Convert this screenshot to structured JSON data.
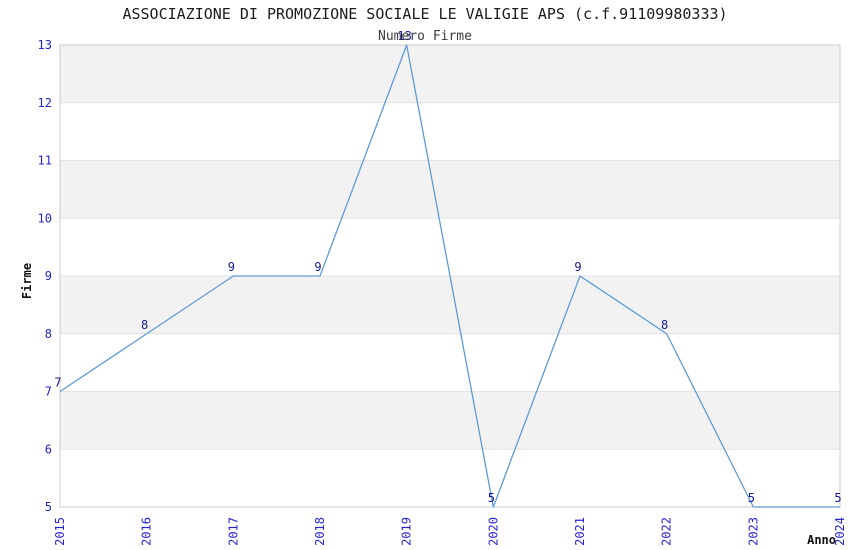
{
  "header": {
    "title": "ASSOCIAZIONE DI PROMOZIONE SOCIALE LE VALIGIE APS (c.f.91109980333)",
    "subtitle": "Numero Firme"
  },
  "chart_data": {
    "type": "line",
    "title": "ASSOCIAZIONE DI PROMOZIONE SOCIALE LE VALIGIE APS (c.f.91109980333)",
    "subtitle": "Numero Firme",
    "xlabel": "Anno",
    "ylabel": "Firme",
    "x": [
      2015,
      2016,
      2017,
      2018,
      2019,
      2020,
      2021,
      2022,
      2023,
      2024
    ],
    "values": [
      7,
      8,
      9,
      9,
      13,
      5,
      9,
      8,
      5,
      5
    ],
    "series": [
      {
        "name": "Numero Firme",
        "values": [
          7,
          8,
          9,
          9,
          13,
          5,
          9,
          8,
          5,
          5
        ]
      }
    ],
    "ylim": [
      5,
      13
    ],
    "yticks": [
      5,
      6,
      7,
      8,
      9,
      10,
      11,
      12,
      13
    ],
    "xticks": [
      2015,
      2016,
      2017,
      2018,
      2019,
      2020,
      2021,
      2022,
      2023,
      2024
    ],
    "data_labels": true,
    "legend": "none",
    "grid": "horizontal",
    "shaded_bands": [
      [
        6,
        7
      ],
      [
        8,
        9
      ],
      [
        10,
        11
      ],
      [
        12,
        13
      ]
    ],
    "colors": {
      "line": "#5f9bd7",
      "band": "#f2f2f2",
      "grid": "#e3e3e3",
      "border": "#cccccc",
      "tick_label": "#2626d1",
      "data_label": "#17178c",
      "title": "#1c1c1c",
      "subtitle": "#3d3d3d",
      "axis_title": "#111111"
    }
  }
}
